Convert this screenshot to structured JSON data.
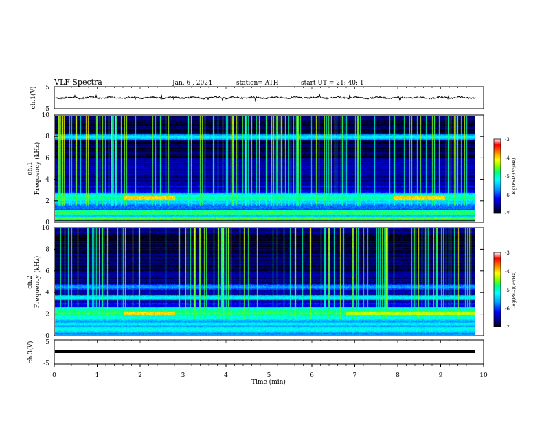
{
  "header": {
    "title": "VLF  Spectra",
    "date": "Jan.  6  , 2024",
    "station": "station= ATH",
    "start": "start  UT  =    21: 40: 1"
  },
  "colors": {
    "background": "#ffffff",
    "axis": "#000000",
    "colormap": [
      "#000000",
      "#000080",
      "#0000ff",
      "#00a0ff",
      "#00ffff",
      "#00ff80",
      "#80ff00",
      "#ffff00",
      "#ff8000",
      "#ff0000",
      "#ffffff"
    ]
  },
  "chart_data": [
    {
      "type": "line",
      "panel": "ch1-waveform",
      "ylabel": "ch.1(V)",
      "ylim": [
        -5,
        5
      ],
      "yticks": [
        "5",
        "-5"
      ],
      "xlim": [
        0,
        10
      ],
      "series": [
        {
          "values": [
            0.0,
            0.2,
            -0.1,
            0.3,
            0.1,
            -0.2,
            0.2,
            0.4,
            0.0,
            -0.1,
            0.3,
            0.2,
            0.1,
            -0.2,
            0.0,
            0.2
          ]
        }
      ]
    },
    {
      "type": "heatmap",
      "panel": "ch1-spectrogram",
      "ylabel": "ch.1\nFrequency  (kHz)",
      "ylim": [
        0,
        10
      ],
      "yticks": [
        "0",
        "2",
        "4",
        "6",
        "8",
        "10"
      ],
      "xlim": [
        0,
        9.8
      ],
      "colorbar": {
        "label": "log(PSD)(V²/Hz)",
        "range": [
          -7,
          -3
        ],
        "ticks": [
          "-3",
          "-4",
          "-5",
          "-6",
          "-7"
        ]
      },
      "bands": [
        {
          "freq": 0.2,
          "level": -4.5
        },
        {
          "freq": 0.8,
          "level": -4.6
        },
        {
          "freq": 1.8,
          "level": -5.3
        },
        {
          "freq": 2.2,
          "level": -4.8
        },
        {
          "freq": 2.4,
          "level": -5.0
        },
        {
          "freq": 4.5,
          "level": -6.5
        },
        {
          "freq": 8.0,
          "level": -5.2
        }
      ],
      "events": [
        {
          "t_start": 1.6,
          "t_end": 2.8,
          "freq": 2.2,
          "level": -4.0
        },
        {
          "t_start": 7.9,
          "t_end": 9.1,
          "freq": 2.2,
          "level": -4.0
        }
      ],
      "sferics_density": "high"
    },
    {
      "type": "heatmap",
      "panel": "ch2-spectrogram",
      "ylabel": "ch.2\nFrequency  (kHz)",
      "ylim": [
        0,
        10
      ],
      "yticks": [
        "0",
        "2",
        "4",
        "6",
        "8",
        "10"
      ],
      "xlim": [
        0,
        9.8
      ],
      "colorbar": {
        "label": "log(PSD)(V²/Hz)",
        "range": [
          -7,
          -3
        ],
        "ticks": [
          "-3",
          "-4",
          "-5",
          "-6",
          "-7"
        ]
      },
      "bands": [
        {
          "freq": 0.5,
          "level": -5.0
        },
        {
          "freq": 1.0,
          "level": -5.2
        },
        {
          "freq": 1.6,
          "level": -5.0
        },
        {
          "freq": 2.0,
          "level": -4.6
        },
        {
          "freq": 2.3,
          "level": -4.8
        },
        {
          "freq": 3.5,
          "level": -5.2
        },
        {
          "freq": 4.5,
          "level": -5.6
        }
      ],
      "events": [
        {
          "t_start": 1.6,
          "t_end": 2.8,
          "freq": 2.0,
          "level": -4.0
        },
        {
          "t_start": 6.8,
          "t_end": 9.8,
          "freq": 2.0,
          "level": -4.3
        }
      ],
      "sferics_density": "high"
    },
    {
      "type": "line",
      "panel": "ch3-waveform",
      "ylabel": "ch.3(V)",
      "ylim": [
        -5,
        5
      ],
      "yticks": [
        "5",
        "-5"
      ],
      "xlim": [
        0,
        10
      ],
      "series": [
        {
          "values": [
            0.0,
            0.0
          ]
        }
      ]
    }
  ],
  "xaxis": {
    "label": "Time  (min)",
    "ticks": [
      "0",
      "1",
      "2",
      "3",
      "4",
      "5",
      "6",
      "7",
      "8",
      "9",
      "10"
    ]
  }
}
